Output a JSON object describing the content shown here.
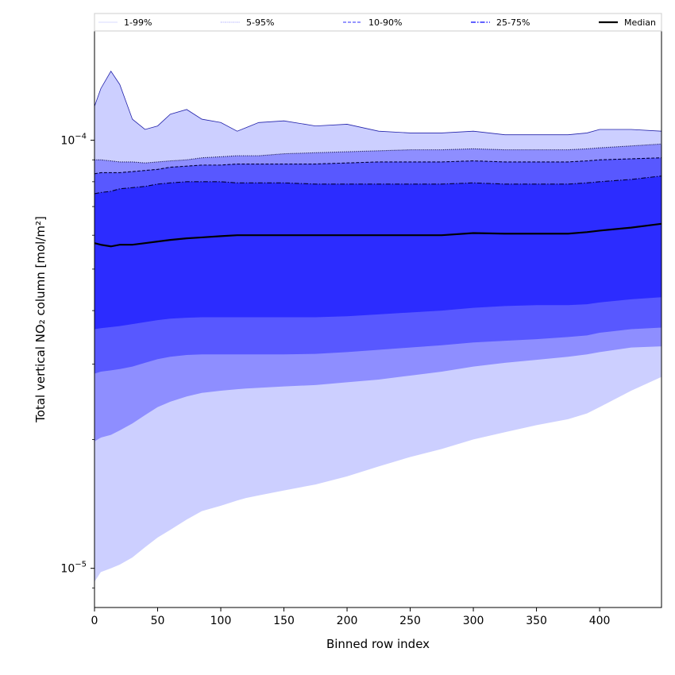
{
  "chart_data": {
    "type": "area",
    "xlabel": "Binned row index",
    "ylabel": "Total vertical NO₂ column [mol/m²]",
    "xlim": [
      0,
      449
    ],
    "ylim": [
      8.1e-06,
      0.00018
    ],
    "yscale": "log",
    "grid": false,
    "legend_position": "top",
    "x_ticks": [
      0,
      50,
      100,
      150,
      200,
      250,
      300,
      350,
      400
    ],
    "x_tick_labels": [
      "0",
      "50",
      "100",
      "150",
      "200",
      "250",
      "300",
      "350",
      "400"
    ],
    "y_ticks": [
      1e-05,
      0.0001
    ],
    "y_tick_labels": [
      {
        "base": "10",
        "exp": "−5"
      },
      {
        "base": "10",
        "exp": "−4"
      }
    ],
    "x": [
      0,
      5,
      13,
      20,
      30,
      40,
      50,
      60,
      73,
      85,
      100,
      113,
      120,
      130,
      150,
      175,
      200,
      225,
      250,
      275,
      300,
      325,
      350,
      375,
      390,
      400,
      425,
      449
    ],
    "bands": [
      {
        "name": "1-99%",
        "color": "#cccfff",
        "line_color": "#2222aa",
        "lower": [
          9.3e-06,
          9.8e-06,
          1e-05,
          1.02e-05,
          1.06e-05,
          1.12e-05,
          1.18e-05,
          1.23e-05,
          1.3e-05,
          1.36e-05,
          1.4e-05,
          1.44e-05,
          1.46e-05,
          1.48e-05,
          1.52e-05,
          1.57e-05,
          1.64e-05,
          1.73e-05,
          1.82e-05,
          1.9e-05,
          2e-05,
          2.08e-05,
          2.16e-05,
          2.23e-05,
          2.3e-05,
          2.38e-05,
          2.6e-05,
          2.8e-05
        ],
        "upper": [
          0.00012,
          0.000132,
          0.000145,
          0.000135,
          0.000112,
          0.000106,
          0.000108,
          0.000115,
          0.000118,
          0.000112,
          0.00011,
          0.000105,
          0.000107,
          0.00011,
          0.000111,
          0.000108,
          0.000109,
          0.000105,
          0.000104,
          0.000104,
          0.000105,
          0.000103,
          0.000103,
          0.000103,
          0.000104,
          0.000106,
          0.000106,
          0.000105
        ]
      },
      {
        "name": "5-95%",
        "color": "#8e8eff",
        "line_color": "#00003a",
        "lower": [
          1.98e-05,
          2.02e-05,
          2.05e-05,
          2.1e-05,
          2.18e-05,
          2.28e-05,
          2.38e-05,
          2.45e-05,
          2.52e-05,
          2.57e-05,
          2.6e-05,
          2.62e-05,
          2.63e-05,
          2.64e-05,
          2.66e-05,
          2.68e-05,
          2.72e-05,
          2.76e-05,
          2.82e-05,
          2.88e-05,
          2.96e-05,
          3.02e-05,
          3.07e-05,
          3.12e-05,
          3.16e-05,
          3.2e-05,
          3.28e-05,
          3.3e-05
        ],
        "upper": [
          9e-05,
          9e-05,
          8.95e-05,
          8.9e-05,
          8.9e-05,
          8.85e-05,
          8.9e-05,
          8.95e-05,
          9e-05,
          9.1e-05,
          9.15e-05,
          9.2e-05,
          9.2e-05,
          9.2e-05,
          9.3e-05,
          9.35e-05,
          9.4e-05,
          9.45e-05,
          9.5e-05,
          9.5e-05,
          9.55e-05,
          9.5e-05,
          9.5e-05,
          9.5e-05,
          9.55e-05,
          9.6e-05,
          9.7e-05,
          9.8e-05
        ]
      },
      {
        "name": "10-90%",
        "color": "#5858ff",
        "line_color": "#00003a",
        "lower": [
          2.85e-05,
          2.88e-05,
          2.9e-05,
          2.92e-05,
          2.96e-05,
          3.02e-05,
          3.08e-05,
          3.12e-05,
          3.15e-05,
          3.16e-05,
          3.16e-05,
          3.16e-05,
          3.16e-05,
          3.16e-05,
          3.16e-05,
          3.17e-05,
          3.2e-05,
          3.24e-05,
          3.28e-05,
          3.32e-05,
          3.37e-05,
          3.4e-05,
          3.43e-05,
          3.47e-05,
          3.5e-05,
          3.55e-05,
          3.62e-05,
          3.65e-05
        ],
        "upper": [
          8.35e-05,
          8.4e-05,
          8.4e-05,
          8.4e-05,
          8.45e-05,
          8.5e-05,
          8.55e-05,
          8.65e-05,
          8.7e-05,
          8.75e-05,
          8.75e-05,
          8.8e-05,
          8.8e-05,
          8.8e-05,
          8.8e-05,
          8.8e-05,
          8.85e-05,
          8.9e-05,
          8.9e-05,
          8.9e-05,
          8.95e-05,
          8.9e-05,
          8.9e-05,
          8.9e-05,
          8.95e-05,
          9e-05,
          9.05e-05,
          9.1e-05
        ]
      },
      {
        "name": "25-75%",
        "color": "#2c2cff",
        "line_color": "#00003a",
        "lower": [
          3.62e-05,
          3.64e-05,
          3.66e-05,
          3.68e-05,
          3.72e-05,
          3.76e-05,
          3.8e-05,
          3.83e-05,
          3.85e-05,
          3.86e-05,
          3.86e-05,
          3.86e-05,
          3.86e-05,
          3.86e-05,
          3.86e-05,
          3.86e-05,
          3.88e-05,
          3.92e-05,
          3.96e-05,
          4e-05,
          4.06e-05,
          4.1e-05,
          4.12e-05,
          4.12e-05,
          4.14e-05,
          4.18e-05,
          4.25e-05,
          4.3e-05
        ],
        "upper": [
          7.5e-05,
          7.55e-05,
          7.6e-05,
          7.7e-05,
          7.75e-05,
          7.8e-05,
          7.9e-05,
          7.95e-05,
          8e-05,
          8e-05,
          8e-05,
          7.95e-05,
          7.95e-05,
          7.95e-05,
          7.95e-05,
          7.9e-05,
          7.9e-05,
          7.9e-05,
          7.9e-05,
          7.9e-05,
          7.95e-05,
          7.9e-05,
          7.9e-05,
          7.9e-05,
          7.95e-05,
          8e-05,
          8.1e-05,
          8.25e-05
        ]
      }
    ],
    "series": [
      {
        "name": "Median",
        "color": "#000000",
        "values": [
          5.75e-05,
          5.7e-05,
          5.65e-05,
          5.7e-05,
          5.7e-05,
          5.75e-05,
          5.8e-05,
          5.85e-05,
          5.9e-05,
          5.93e-05,
          5.97e-05,
          6e-05,
          6e-05,
          6e-05,
          6e-05,
          6e-05,
          6e-05,
          6e-05,
          6e-05,
          6e-05,
          6.07e-05,
          6.05e-05,
          6.05e-05,
          6.05e-05,
          6.1e-05,
          6.15e-05,
          6.25e-05,
          6.38e-05
        ]
      }
    ],
    "legend": [
      {
        "label": "1-99%",
        "style": "solid-thin",
        "color": "#cccfff"
      },
      {
        "label": "5-95%",
        "style": "dotted",
        "color": "#8e8eff"
      },
      {
        "label": "10-90%",
        "style": "dashed",
        "color": "#5858ff"
      },
      {
        "label": "25-75%",
        "style": "dashdot",
        "color": "#2c2cff"
      },
      {
        "label": "Median",
        "style": "solid-thick",
        "color": "#000000"
      }
    ]
  }
}
